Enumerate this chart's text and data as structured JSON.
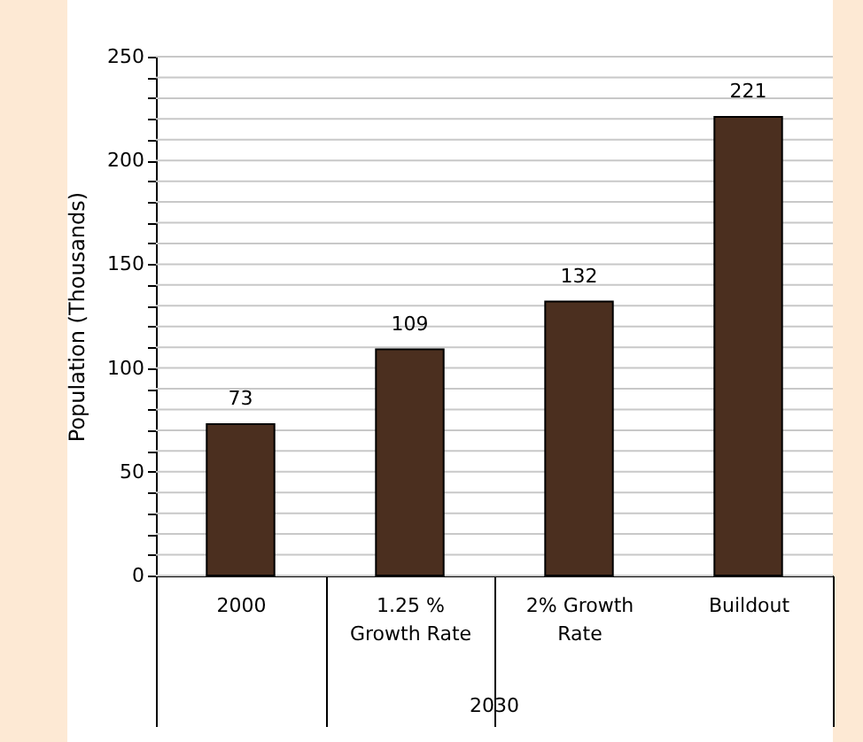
{
  "chart_data": {
    "type": "bar",
    "ylabel": "Population (Thousands)",
    "categories": [
      "2000",
      "1.25 % Growth Rate",
      "2% Growth Rate",
      "Buildout"
    ],
    "values": [
      73,
      109,
      132,
      221
    ],
    "color": "#4b2f1f",
    "ylim": [
      0,
      250
    ],
    "yticks": [
      0,
      {
        "value": 10,
        "label": null
      },
      {
        "value": 20,
        "label": null
      },
      {
        "value": 30,
        "label": null
      },
      {
        "value": 40,
        "label": null
      },
      50,
      {
        "value": 60,
        "label": null
      },
      {
        "value": 70,
        "label": null
      },
      {
        "value": 80,
        "label": null
      },
      {
        "value": 90,
        "label": null
      },
      100,
      {
        "value": 110,
        "label": null
      },
      {
        "value": 120,
        "label": null
      },
      {
        "value": 130,
        "label": null
      },
      {
        "value": 140,
        "label": null
      },
      150,
      {
        "value": 160,
        "label": null
      },
      {
        "value": 170,
        "label": null
      },
      {
        "value": 180,
        "label": null
      },
      {
        "value": 190,
        "label": null
      },
      200,
      {
        "value": 210,
        "label": null
      },
      {
        "value": 220,
        "label": null
      },
      {
        "value": 230,
        "label": null
      },
      {
        "value": 240,
        "label": null
      },
      250
    ],
    "grid": true,
    "data_labels": true,
    "annotations": [
      "2030"
    ]
  }
}
